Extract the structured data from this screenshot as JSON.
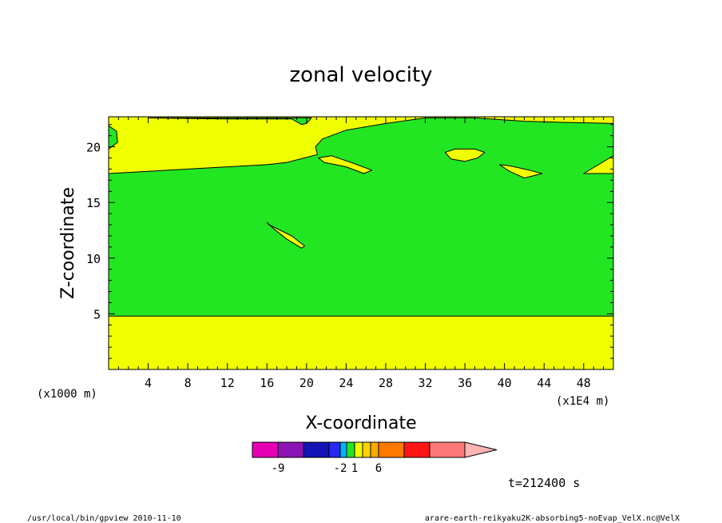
{
  "chart_data": {
    "type": "contour",
    "title": "zonal velocity",
    "xlabel": "X-coordinate",
    "ylabel": "Z-coordinate",
    "x_unit": "(x1E4 m)",
    "y_unit": "(x1000 m)",
    "xlim": [
      0,
      51
    ],
    "ylim": [
      0,
      22.7
    ],
    "x_ticks": [
      4,
      8,
      12,
      16,
      20,
      24,
      28,
      32,
      36,
      40,
      44,
      48
    ],
    "y_ticks": [
      5,
      10,
      15,
      20
    ],
    "fill_regions": [
      {
        "color": "#f0ff00",
        "comment": "background level (yellow)"
      },
      {
        "color": "#22e622",
        "region": "main-band",
        "polygon": [
          [
            0,
            4.8
          ],
          [
            16,
            4.8
          ],
          [
            51,
            4.8
          ],
          [
            51,
            17.6
          ],
          [
            48,
            17.6
          ],
          [
            51,
            19.2
          ],
          [
            51,
            22.1
          ],
          [
            46,
            22.2
          ],
          [
            42,
            22.3
          ],
          [
            37,
            22.6
          ],
          [
            32,
            22.6
          ],
          [
            28,
            22.1
          ],
          [
            24,
            21.5
          ],
          [
            21.6,
            20.7
          ],
          [
            20.9,
            20.0
          ],
          [
            21.1,
            19.3
          ],
          [
            18,
            18.6
          ],
          [
            16,
            18.4
          ],
          [
            10,
            18.1
          ],
          [
            4,
            17.8
          ],
          [
            0,
            17.6
          ]
        ]
      },
      {
        "color": "#22e622",
        "region": "top-left-patch",
        "polygon": [
          [
            4,
            22.6
          ],
          [
            12,
            22.5
          ],
          [
            18.5,
            22.5
          ],
          [
            19.5,
            22.0
          ],
          [
            20,
            22.1
          ],
          [
            20.5,
            22.6
          ]
        ]
      },
      {
        "color": "#22e622",
        "region": "left-edge-patch",
        "polygon": [
          [
            0,
            21.9
          ],
          [
            0.8,
            21.4
          ],
          [
            0.9,
            20.4
          ],
          [
            0,
            19.8
          ]
        ]
      },
      {
        "color": "#f0ff00",
        "region": "island-1",
        "polygon": [
          [
            16,
            13.2
          ],
          [
            16.6,
            12.7
          ],
          [
            18,
            11.7
          ],
          [
            19.5,
            10.9
          ],
          [
            19.8,
            11.1
          ],
          [
            18.5,
            12.0
          ],
          [
            16.2,
            13.0
          ]
        ]
      },
      {
        "color": "#f0ff00",
        "region": "island-2",
        "polygon": [
          [
            21.2,
            19.0
          ],
          [
            21.8,
            18.6
          ],
          [
            24,
            18.2
          ],
          [
            25.8,
            17.6
          ],
          [
            26.6,
            17.9
          ],
          [
            24.5,
            18.6
          ],
          [
            22.5,
            19.2
          ]
        ]
      },
      {
        "color": "#f0ff00",
        "region": "island-3",
        "polygon": [
          [
            34,
            19.5
          ],
          [
            35,
            19.8
          ],
          [
            37,
            19.8
          ],
          [
            38,
            19.5
          ],
          [
            37.3,
            19.0
          ],
          [
            36,
            18.7
          ],
          [
            34.6,
            18.9
          ]
        ]
      },
      {
        "color": "#f0ff00",
        "region": "island-4",
        "polygon": [
          [
            39.5,
            18.4
          ],
          [
            40.5,
            18.3
          ],
          [
            42.5,
            17.9
          ],
          [
            43.8,
            17.6
          ],
          [
            42,
            17.2
          ],
          [
            40.5,
            17.8
          ]
        ]
      }
    ],
    "colorbar": {
      "colors": [
        "#e600b4",
        "#8c14b4",
        "#1414b4",
        "#2828f0",
        "#00b4ff",
        "#22e622",
        "#f0ff00",
        "#ffd200",
        "#ffaa00",
        "#ff7800",
        "#ff1414",
        "#ff7878",
        "#ffb4b4"
      ],
      "tick_labels": [
        "-9",
        "-2",
        "1",
        "6"
      ]
    },
    "time_label": "t=212400 s"
  },
  "footer": {
    "left": "/usr/local/bin/gpview  2010-11-10",
    "right": "arare-earth-reikyaku2K-absorbing5-noEvap_VelX.nc@VelX"
  }
}
